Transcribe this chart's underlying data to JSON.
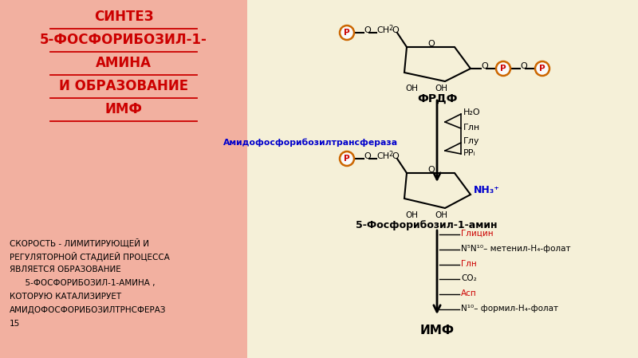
{
  "title_lines": [
    "СИНТЕЗ",
    "5-ФОСФОРИБОЗИЛ-1-",
    "АМИНА",
    "И ОБРАЗОВАНИЕ",
    "ИМФ"
  ],
  "title_color": "#cc0000",
  "bg_left_color": "#f2b0a0",
  "bg_right_color": "#f5f0d8",
  "enzyme_label": "Амидофосфорибозилтрансфераза",
  "enzyme_color": "#0000cc",
  "frdp_label": "ФРДФ",
  "product_label": "5-Фосфорибозил-1-амин",
  "imf_label": "ИМФ",
  "nh3_label": "NH₃⁺",
  "nh3_color": "#0000cc",
  "reactants_in": [
    "H₂O",
    "Глн"
  ],
  "products_out": [
    "Глу",
    "PPᵢ"
  ],
  "pathway_labels": [
    "Глицин",
    "N⁵N¹⁰– метенил-H₄-фолат",
    "Глн",
    "CO₂",
    "Асп",
    "N¹⁰– формил-H₄-фолат"
  ],
  "pathway_colors": [
    "#cc0000",
    "#000000",
    "#cc0000",
    "#000000",
    "#cc0000",
    "#000000"
  ],
  "bottom_lines": [
    "СКОРОСТЬ - ЛИМИТИРУЮЩЕЙ И",
    "РЕГУЛЯТОРНОЙ СТАДИЕЙ ПРОЦЕССА",
    "ЯВЛЯЕТСЯ ОБРАЗОВАНИЕ",
    "      5-ФОСФОРИБОЗИЛ-1-АМИНА ,",
    "КОТОРУЮ КАТАЛИЗИРУЕТ",
    "АМИДОФОСФОРИБОЗИЛТРНСФЕРАЗ",
    "15"
  ],
  "p_circle_face": "#fafafa",
  "p_circle_edge": "#cc6600",
  "p_text_color": "#cc0000"
}
